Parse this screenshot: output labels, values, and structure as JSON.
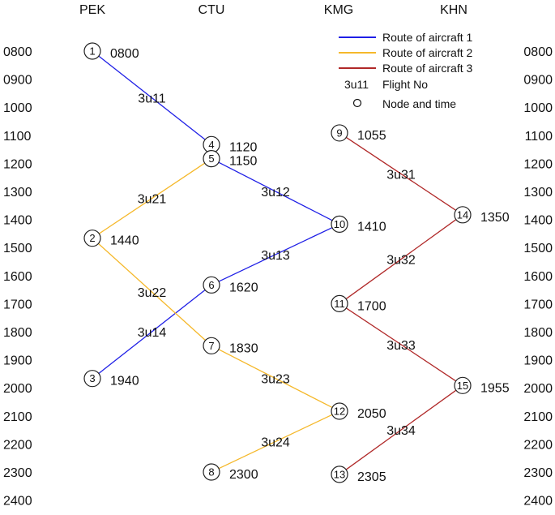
{
  "stations": [
    {
      "code": "PEK"
    },
    {
      "code": "CTU"
    },
    {
      "code": "KMG"
    },
    {
      "code": "KHN"
    }
  ],
  "time_labels": [
    "0800",
    "0900",
    "1000",
    "1100",
    "1200",
    "1300",
    "1400",
    "1500",
    "1600",
    "1700",
    "1800",
    "1900",
    "2000",
    "2100",
    "2200",
    "2300",
    "2400"
  ],
  "nodes": [
    {
      "id": "1",
      "station": "PEK",
      "time": "0800"
    },
    {
      "id": "2",
      "station": "PEK",
      "time": "1440"
    },
    {
      "id": "3",
      "station": "PEK",
      "time": "1940"
    },
    {
      "id": "4",
      "station": "CTU",
      "time": "1120"
    },
    {
      "id": "5",
      "station": "CTU",
      "time": "1150"
    },
    {
      "id": "6",
      "station": "CTU",
      "time": "1620"
    },
    {
      "id": "7",
      "station": "CTU",
      "time": "1830"
    },
    {
      "id": "8",
      "station": "CTU",
      "time": "2300"
    },
    {
      "id": "9",
      "station": "KMG",
      "time": "1055"
    },
    {
      "id": "10",
      "station": "KMG",
      "time": "1410"
    },
    {
      "id": "11",
      "station": "KMG",
      "time": "1700"
    },
    {
      "id": "12",
      "station": "KMG",
      "time": "2050"
    },
    {
      "id": "13",
      "station": "KMG",
      "time": "2305"
    },
    {
      "id": "14",
      "station": "KHN",
      "time": "1350"
    },
    {
      "id": "15",
      "station": "KHN",
      "time": "1955"
    }
  ],
  "flights": [
    {
      "flight": "3u11",
      "from": "1",
      "to": "4",
      "aircraft": 1
    },
    {
      "flight": "3u12",
      "from": "5",
      "to": "10",
      "aircraft": 1
    },
    {
      "flight": "3u13",
      "from": "10",
      "to": "6",
      "aircraft": 1
    },
    {
      "flight": "3u14",
      "from": "6",
      "to": "3",
      "aircraft": 1
    },
    {
      "flight": "3u21",
      "from": "5",
      "to": "2",
      "aircraft": 2
    },
    {
      "flight": "3u22",
      "from": "2",
      "to": "7",
      "aircraft": 2
    },
    {
      "flight": "3u23",
      "from": "7",
      "to": "12",
      "aircraft": 2
    },
    {
      "flight": "3u24",
      "from": "12",
      "to": "8",
      "aircraft": 2
    },
    {
      "flight": "3u31",
      "from": "9",
      "to": "14",
      "aircraft": 3
    },
    {
      "flight": "3u32",
      "from": "14",
      "to": "11",
      "aircraft": 3
    },
    {
      "flight": "3u33",
      "from": "11",
      "to": "15",
      "aircraft": 3
    },
    {
      "flight": "3u34",
      "from": "15",
      "to": "13",
      "aircraft": 3
    }
  ],
  "aircraft_colors": {
    "1": "#1f1fe6",
    "2": "#f5b82a",
    "3": "#b02828"
  },
  "legend": {
    "items": [
      {
        "label": "Route of aircraft 1",
        "color": "#1f1fe6"
      },
      {
        "label": "Route of aircraft 2",
        "color": "#f5b82a"
      },
      {
        "label": "Route of aircraft 3",
        "color": "#b02828"
      }
    ],
    "flight_sample": "3u11",
    "flight_label": "Flight No",
    "node_symbol": "o",
    "node_label": "Node and time"
  }
}
